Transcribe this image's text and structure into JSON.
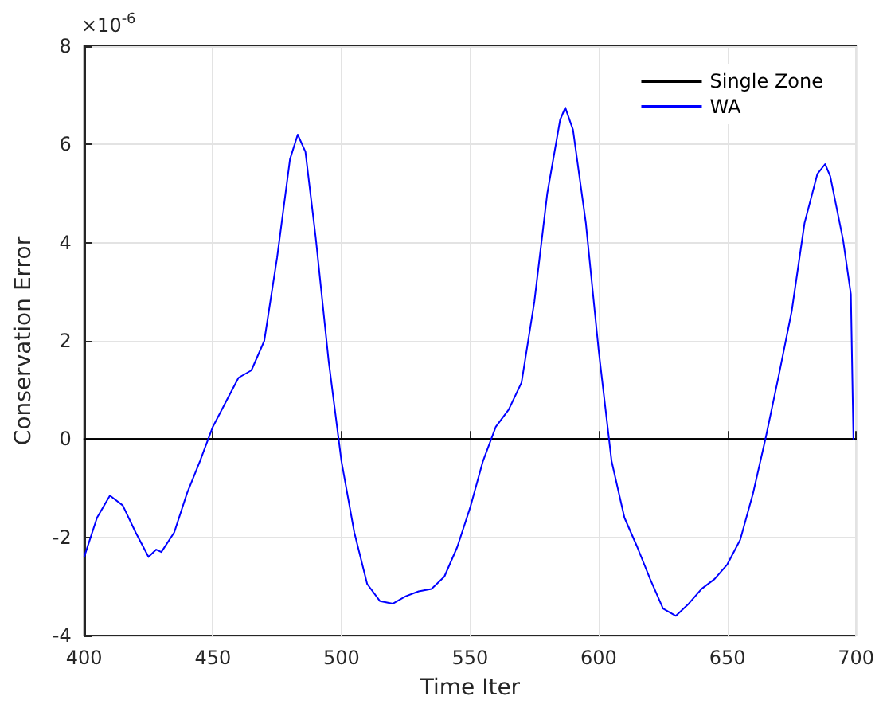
{
  "chart_data": {
    "type": "line",
    "xlabel": "Time Iter",
    "ylabel": "Conservation Error",
    "annotations": [
      "×10$^{-6}$"
    ],
    "xlim": [
      400,
      700
    ],
    "xticks": [
      400,
      450,
      500,
      550,
      600,
      650,
      700
    ],
    "ylim": [
      -4,
      8
    ],
    "yticks": [
      -4,
      -2,
      0,
      2,
      4,
      6,
      8
    ],
    "grid": true,
    "legend": "top right",
    "marker": "none",
    "line_style": "solid",
    "series": [
      {
        "name": "Single Zone",
        "color": "#000000",
        "x": [
          400,
          700
        ],
        "values": [
          0,
          0
        ]
      },
      {
        "name": "WA",
        "color": "#0000ff",
        "x": [
          400,
          405,
          410,
          415,
          420,
          425,
          428,
          430,
          435,
          440,
          445,
          450,
          455,
          460,
          465,
          470,
          475,
          480,
          483,
          486,
          490,
          495,
          500,
          505,
          510,
          515,
          520,
          525,
          530,
          535,
          540,
          545,
          550,
          555,
          560,
          565,
          570,
          575,
          580,
          585,
          587,
          590,
          595,
          600,
          605,
          610,
          615,
          620,
          625,
          630,
          635,
          640,
          645,
          650,
          655,
          660,
          665,
          670,
          675,
          680,
          685,
          688,
          690,
          695,
          698,
          699
        ],
        "values": [
          -2.4,
          -1.6,
          -1.15,
          -1.35,
          -1.9,
          -2.4,
          -2.25,
          -2.3,
          -1.9,
          -1.1,
          -0.45,
          0.25,
          0.75,
          1.25,
          1.4,
          2.0,
          3.7,
          5.7,
          6.2,
          5.85,
          4.1,
          1.6,
          -0.45,
          -1.9,
          -2.95,
          -3.3,
          -3.35,
          -3.2,
          -3.1,
          -3.05,
          -2.8,
          -2.2,
          -1.4,
          -0.45,
          0.25,
          0.6,
          1.15,
          2.8,
          5.0,
          6.5,
          6.75,
          6.3,
          4.4,
          1.8,
          -0.45,
          -1.6,
          -2.2,
          -2.85,
          -3.45,
          -3.6,
          -3.35,
          -3.05,
          -2.85,
          -2.55,
          -2.05,
          -1.1,
          0.05,
          1.3,
          2.6,
          4.4,
          5.4,
          5.6,
          5.35,
          4.05,
          2.95,
          0
        ]
      }
    ]
  }
}
